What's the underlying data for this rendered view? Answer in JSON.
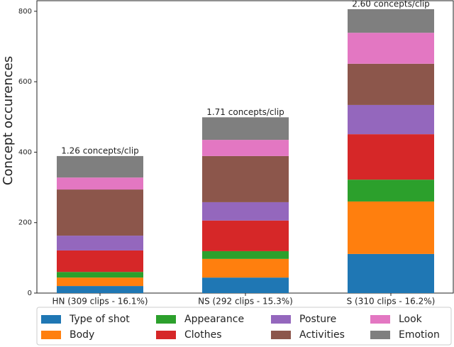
{
  "chart_data": {
    "type": "stacked-bar",
    "y_label": "Concept occurences",
    "categories": [
      "HN (309 clips - 16.1%)",
      "NS (292 clips - 15.3%)",
      "S (310 clips - 16.2%)"
    ],
    "annotations": [
      "1.26 concepts/clip",
      "1.71 concepts/clip",
      "2.60 concepts/clip"
    ],
    "series": [
      {
        "name": "Type of shot",
        "color": "#1f77b4",
        "values": [
          20,
          44,
          111
        ]
      },
      {
        "name": "Body",
        "color": "#ff7f0e",
        "values": [
          24,
          53,
          149
        ]
      },
      {
        "name": "Appearance",
        "color": "#2ca02c",
        "values": [
          16,
          22,
          62
        ]
      },
      {
        "name": "Clothes",
        "color": "#d62728",
        "values": [
          61,
          87,
          129
        ]
      },
      {
        "name": "Posture",
        "color": "#9467bd",
        "values": [
          42,
          52,
          83
        ]
      },
      {
        "name": "Activities",
        "color": "#8c564b",
        "values": [
          131,
          131,
          117
        ]
      },
      {
        "name": "Look",
        "color": "#e377c2",
        "values": [
          34,
          46,
          88
        ]
      },
      {
        "name": "Emotion",
        "color": "#7f7f7f",
        "values": [
          61,
          64,
          67
        ]
      }
    ],
    "ylim": [
      0,
      830
    ],
    "yticks": [
      0,
      200,
      400,
      600,
      800
    ]
  }
}
